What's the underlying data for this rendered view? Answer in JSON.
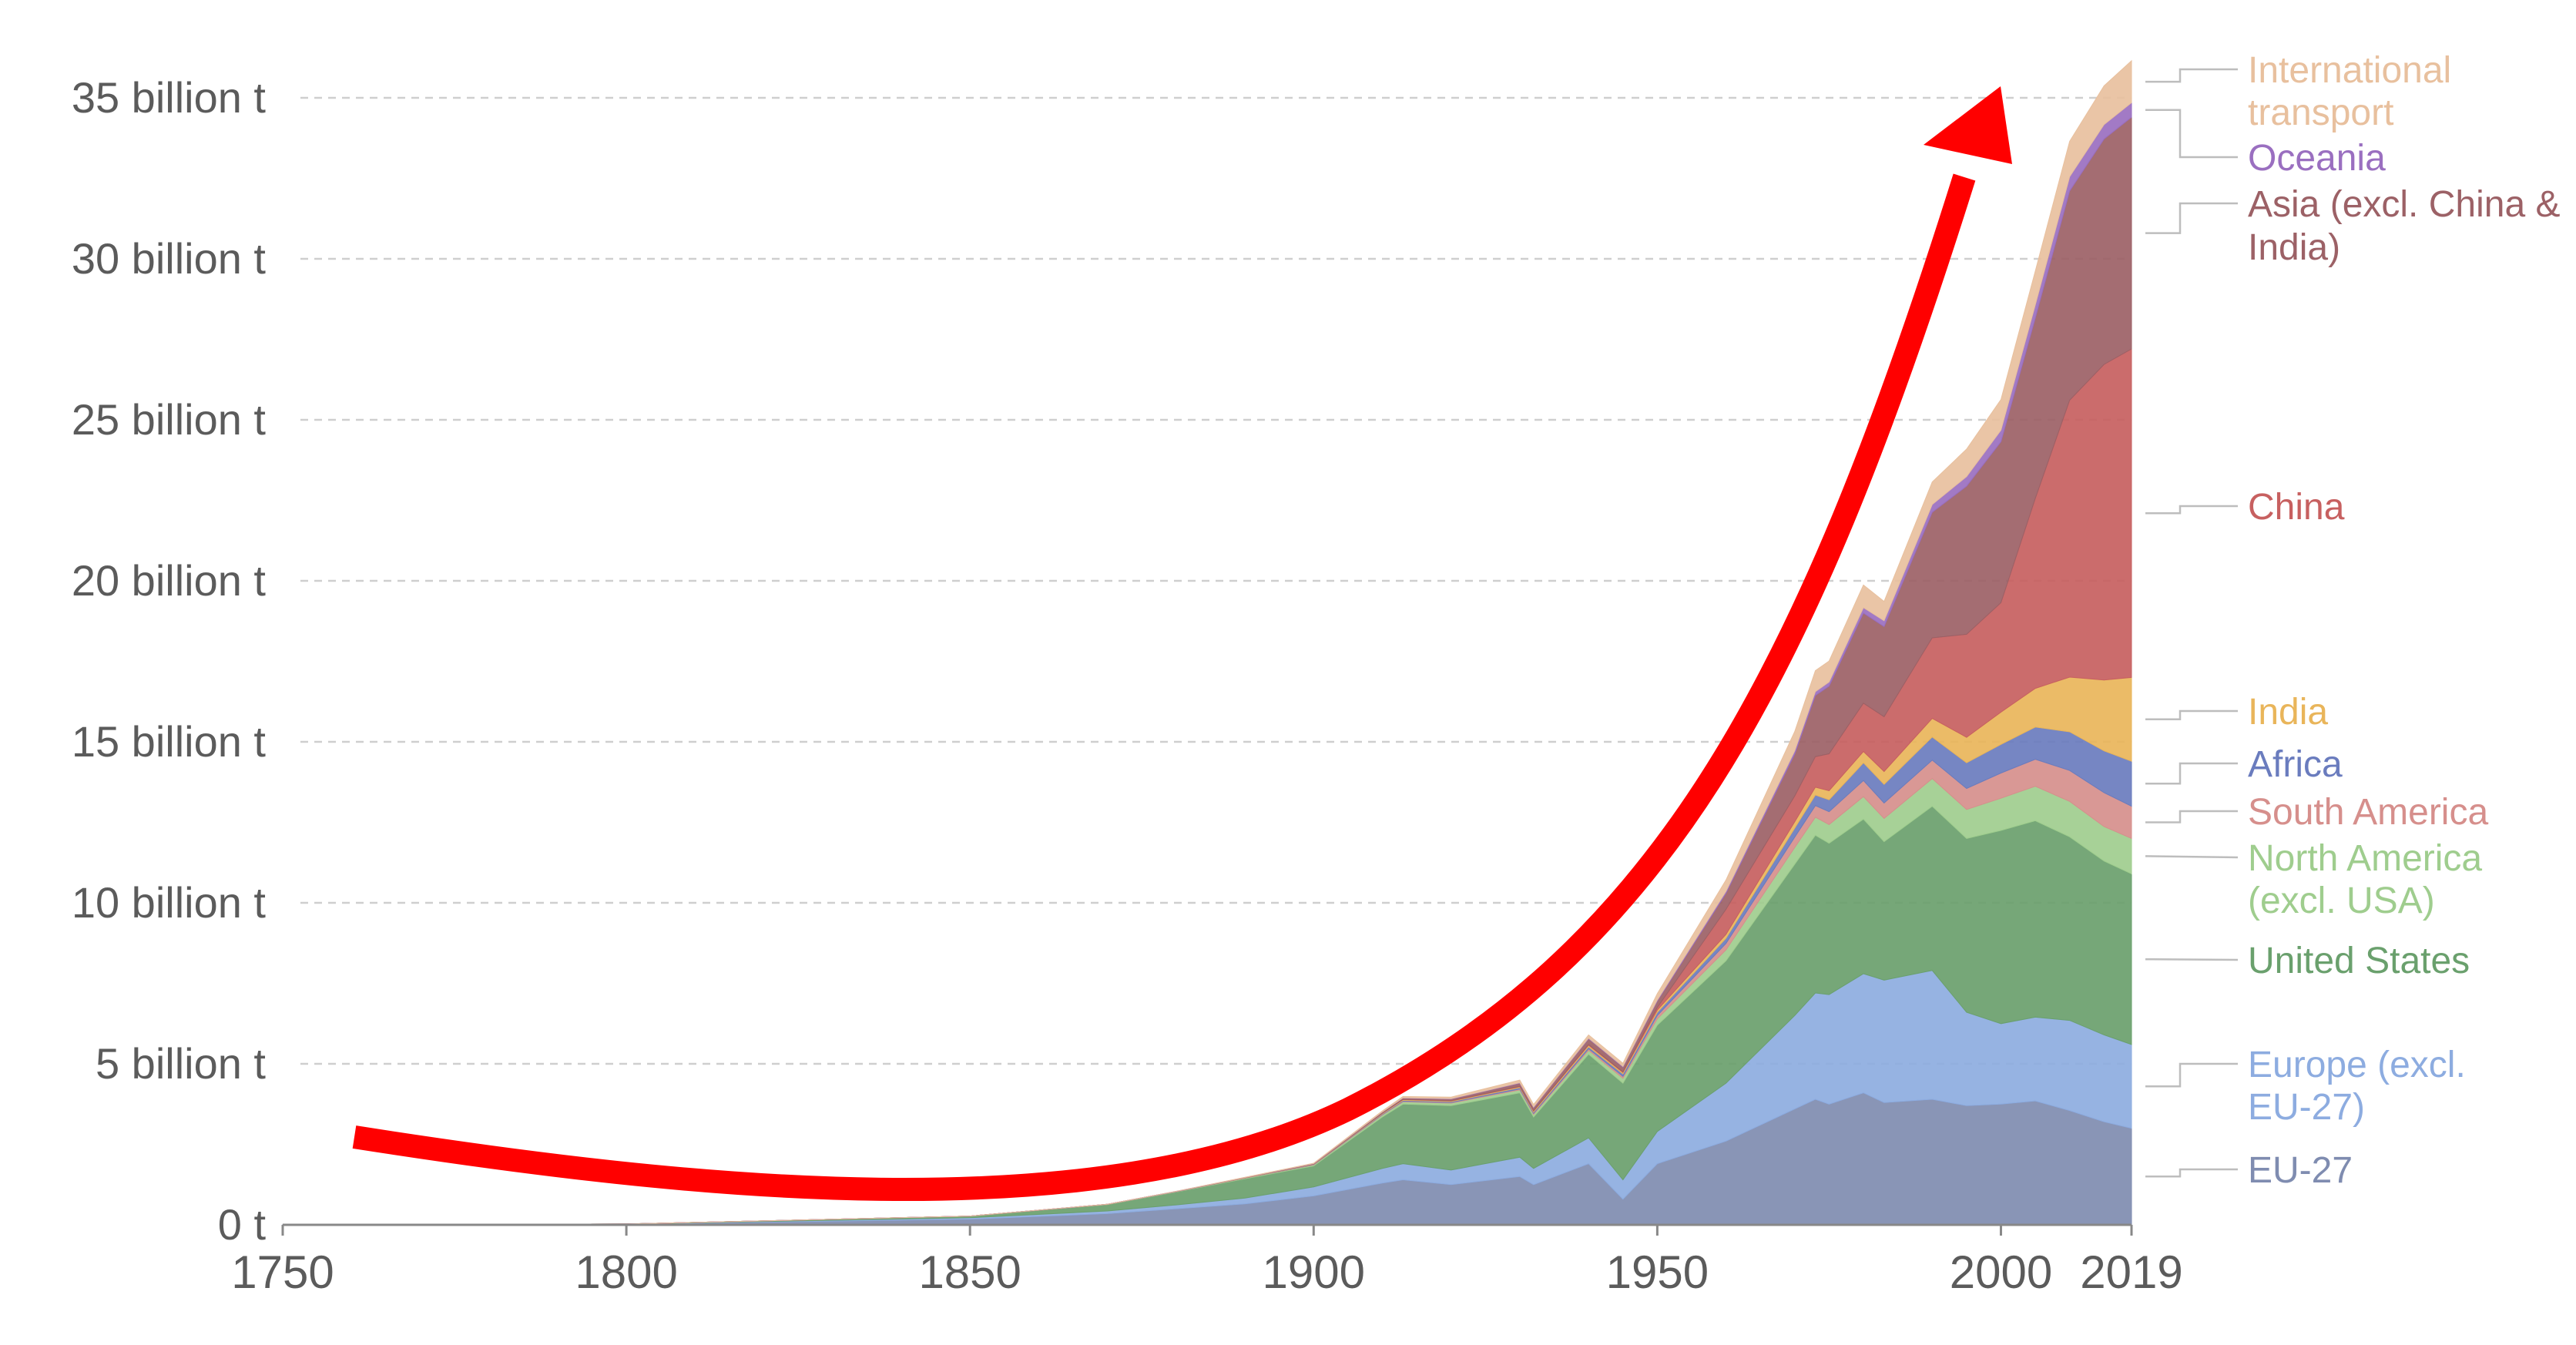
{
  "chart_data": {
    "type": "area",
    "stacked": true,
    "title": "",
    "xlabel": "",
    "ylabel": "",
    "ylim": [
      0,
      36.3
    ],
    "xlim": [
      1750,
      2019
    ],
    "grid": true,
    "legend_placement": "right (labels at series end)",
    "y_ticks": [
      {
        "value": 0,
        "label": "0 t"
      },
      {
        "value": 5,
        "label": "5 billion t"
      },
      {
        "value": 10,
        "label": "10 billion t"
      },
      {
        "value": 15,
        "label": "15 billion t"
      },
      {
        "value": 20,
        "label": "20 billion t"
      },
      {
        "value": 25,
        "label": "25 billion t"
      },
      {
        "value": 30,
        "label": "30 billion t"
      },
      {
        "value": 35,
        "label": "35 billion t"
      }
    ],
    "x_ticks": [
      "1750",
      "1800",
      "1850",
      "1900",
      "1950",
      "2000",
      "2019"
    ],
    "x": [
      1750,
      1800,
      1850,
      1870,
      1880,
      1890,
      1900,
      1910,
      1913,
      1920,
      1930,
      1932,
      1940,
      1945,
      1950,
      1960,
      1970,
      1973,
      1975,
      1980,
      1983,
      1990,
      1995,
      2000,
      2005,
      2010,
      2015,
      2019
    ],
    "series": [
      {
        "name": "EU-27",
        "color": "#7f8cb0",
        "values": [
          0.003,
          0.02,
          0.18,
          0.35,
          0.5,
          0.65,
          0.9,
          1.3,
          1.4,
          1.25,
          1.5,
          1.25,
          1.9,
          0.8,
          1.9,
          2.6,
          3.6,
          3.9,
          3.75,
          4.1,
          3.8,
          3.9,
          3.7,
          3.75,
          3.85,
          3.55,
          3.2,
          3.0
        ]
      },
      {
        "name": "Europe (excl. EU-27)",
        "color": "#8dace0",
        "values": [
          0.0,
          0.004,
          0.04,
          0.08,
          0.12,
          0.18,
          0.28,
          0.45,
          0.5,
          0.45,
          0.6,
          0.5,
          0.8,
          0.6,
          1.0,
          1.8,
          2.9,
          3.3,
          3.4,
          3.7,
          3.8,
          4.0,
          2.9,
          2.5,
          2.6,
          2.8,
          2.7,
          2.6
        ]
      },
      {
        "name": "United States",
        "color": "#6aa06d",
        "values": [
          0.0,
          0.002,
          0.05,
          0.2,
          0.4,
          0.6,
          0.65,
          1.6,
          1.85,
          2.0,
          2.0,
          1.6,
          2.6,
          3.0,
          3.3,
          3.8,
          4.7,
          4.9,
          4.7,
          4.8,
          4.3,
          5.1,
          5.4,
          6.0,
          6.1,
          5.7,
          5.4,
          5.3
        ]
      },
      {
        "name": "North America (excl. USA)",
        "color": "#9fcd8e",
        "values": [
          0.0,
          0.0,
          0.003,
          0.005,
          0.01,
          0.02,
          0.03,
          0.06,
          0.07,
          0.08,
          0.09,
          0.08,
          0.12,
          0.15,
          0.2,
          0.34,
          0.52,
          0.56,
          0.58,
          0.7,
          0.72,
          0.86,
          0.9,
          1.0,
          1.07,
          1.1,
          1.07,
          1.1
        ]
      },
      {
        "name": "South America",
        "color": "#d68f8c",
        "values": [
          0.0,
          0.0,
          0.0,
          0.001,
          0.002,
          0.004,
          0.008,
          0.015,
          0.02,
          0.02,
          0.03,
          0.03,
          0.05,
          0.06,
          0.1,
          0.2,
          0.32,
          0.36,
          0.4,
          0.5,
          0.48,
          0.57,
          0.65,
          0.78,
          0.84,
          0.96,
          1.05,
          1.0
        ]
      },
      {
        "name": "Africa",
        "color": "#6a7cbe",
        "values": [
          0.0,
          0.0,
          0.0,
          0.001,
          0.002,
          0.003,
          0.01,
          0.02,
          0.025,
          0.025,
          0.04,
          0.04,
          0.06,
          0.08,
          0.1,
          0.16,
          0.28,
          0.33,
          0.37,
          0.55,
          0.58,
          0.72,
          0.8,
          0.89,
          1.0,
          1.2,
          1.3,
          1.4
        ]
      },
      {
        "name": "India",
        "color": "#e9b55a",
        "values": [
          0.0,
          0.0,
          0.0,
          0.001,
          0.002,
          0.005,
          0.01,
          0.02,
          0.025,
          0.02,
          0.03,
          0.03,
          0.05,
          0.04,
          0.07,
          0.12,
          0.2,
          0.24,
          0.28,
          0.35,
          0.4,
          0.58,
          0.79,
          1.0,
          1.2,
          1.7,
          2.2,
          2.6
        ]
      },
      {
        "name": "China",
        "color": "#c76060",
        "values": [
          0.0,
          0.0,
          0.0,
          0.0,
          0.0,
          0.001,
          0.002,
          0.005,
          0.006,
          0.01,
          0.01,
          0.012,
          0.02,
          0.02,
          0.08,
          0.78,
          0.8,
          0.95,
          1.15,
          1.5,
          1.7,
          2.5,
          3.2,
          3.4,
          5.9,
          8.6,
          9.8,
          10.2
        ]
      },
      {
        "name": "Asia (excl. China & India)",
        "color": "#9c6166",
        "values": [
          0.0,
          0.0,
          0.0,
          0.001,
          0.003,
          0.005,
          0.01,
          0.03,
          0.04,
          0.05,
          0.1,
          0.1,
          0.18,
          0.15,
          0.2,
          0.5,
          1.3,
          1.9,
          2.1,
          2.8,
          2.8,
          3.9,
          4.6,
          5.0,
          5.6,
          6.5,
          7.0,
          7.2
        ]
      },
      {
        "name": "Oceania",
        "color": "#9a6fc0",
        "values": [
          0.0,
          0.0,
          0.0,
          0.001,
          0.002,
          0.003,
          0.005,
          0.008,
          0.01,
          0.012,
          0.015,
          0.015,
          0.02,
          0.02,
          0.03,
          0.06,
          0.1,
          0.12,
          0.13,
          0.17,
          0.18,
          0.24,
          0.3,
          0.36,
          0.41,
          0.44,
          0.45,
          0.45
        ]
      },
      {
        "name": "International transport",
        "color": "#e8c09e",
        "values": [
          0.0,
          0.0,
          0.0,
          0.0,
          0.0,
          0.005,
          0.01,
          0.03,
          0.04,
          0.05,
          0.08,
          0.08,
          0.1,
          0.1,
          0.2,
          0.35,
          0.6,
          0.65,
          0.65,
          0.7,
          0.6,
          0.7,
          0.85,
          0.95,
          1.05,
          1.1,
          1.2,
          1.3
        ]
      }
    ],
    "legend_labels": [
      {
        "series": "International transport",
        "lines": [
          "International",
          "transport"
        ]
      },
      {
        "series": "Oceania",
        "lines": [
          "Oceania"
        ]
      },
      {
        "series": "Asia (excl. China & India)",
        "lines": [
          "Asia (excl. China &",
          "India)"
        ]
      },
      {
        "series": "China",
        "lines": [
          "China"
        ]
      },
      {
        "series": "India",
        "lines": [
          "India"
        ]
      },
      {
        "series": "Africa",
        "lines": [
          "Africa"
        ]
      },
      {
        "series": "South America",
        "lines": [
          "South America"
        ]
      },
      {
        "series": "North America (excl. USA)",
        "lines": [
          "North America",
          "(excl. USA)"
        ]
      },
      {
        "series": "United States",
        "lines": [
          "United States"
        ]
      },
      {
        "series": "Europe (excl. EU-27)",
        "lines": [
          "Europe (excl.",
          "EU-27)"
        ]
      },
      {
        "series": "EU-27",
        "lines": [
          "EU-27"
        ]
      }
    ],
    "annotation_arrow_color": "#ff0000"
  }
}
